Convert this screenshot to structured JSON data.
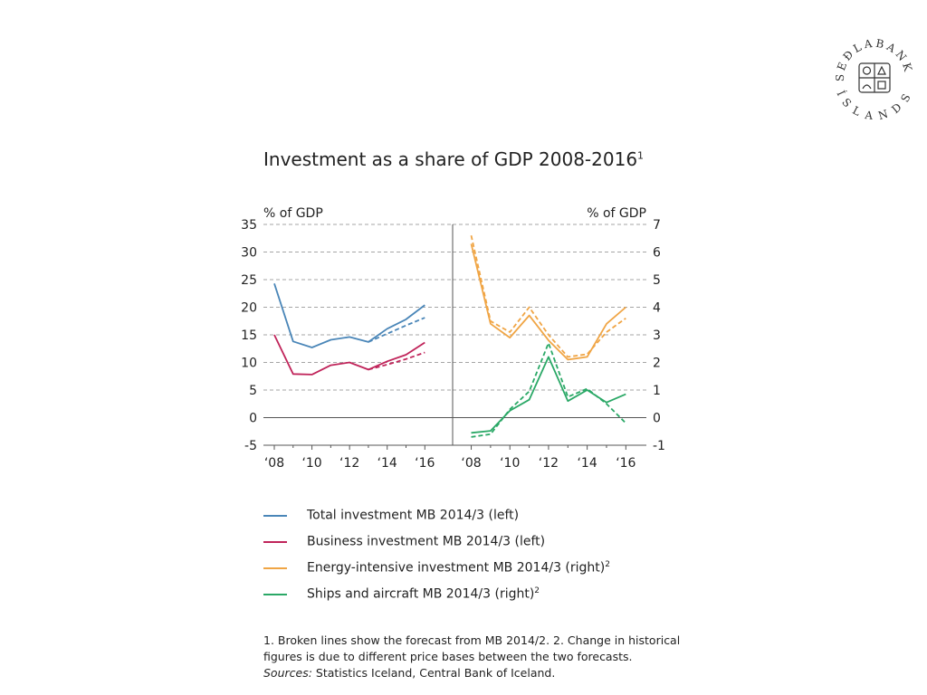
{
  "logo": {
    "text_top": "SEÐLABANKI",
    "text_bottom": "ÍSLANDS",
    "color": "#333333"
  },
  "chart_data": {
    "type": "line",
    "title": "Investment as a share of GDP 2008-2016",
    "title_sup": "1",
    "panels": [
      {
        "id": "left",
        "ylabel": "% of GDP",
        "ylim": [
          -5,
          35
        ],
        "yticks": [
          35,
          30,
          25,
          20,
          15,
          10,
          5,
          0,
          -5
        ],
        "xlim": [
          2008,
          2016.9
        ],
        "xticks": [
          {
            "label": "‘08",
            "x": 2008
          },
          {
            "label": "‘10",
            "x": 2010
          },
          {
            "label": "‘12",
            "x": 2012
          },
          {
            "label": "‘14",
            "x": 2014
          },
          {
            "label": "‘16",
            "x": 2016
          }
        ],
        "series": [
          {
            "name": "Total investment MB 2014/3 (left)",
            "color": "#4a86b8",
            "dashed": false,
            "x": [
              2008,
              2009,
              2010,
              2011,
              2012,
              2013,
              2014,
              2015,
              2016
            ],
            "y": [
              24.3,
              13.8,
              12.7,
              14.1,
              14.6,
              13.7,
              16.1,
              17.8,
              20.4
            ]
          },
          {
            "name": "Total investment MB 2014/2",
            "color": "#4a86b8",
            "dashed": true,
            "x": [
              2013,
              2014,
              2015,
              2016
            ],
            "y": [
              13.7,
              15.2,
              16.7,
              18.1
            ]
          },
          {
            "name": "Business investment MB 2014/3 (left)",
            "color": "#c0245a",
            "dashed": false,
            "x": [
              2008,
              2009,
              2010,
              2011,
              2012,
              2013,
              2014,
              2015,
              2016
            ],
            "y": [
              15.0,
              7.9,
              7.8,
              9.5,
              10.0,
              8.7,
              10.2,
              11.4,
              13.6
            ]
          },
          {
            "name": "Business investment MB 2014/2",
            "color": "#c0245a",
            "dashed": true,
            "x": [
              2013,
              2014,
              2015,
              2016
            ],
            "y": [
              8.7,
              9.6,
              10.6,
              11.8
            ]
          }
        ]
      },
      {
        "id": "right",
        "ylabel": "% of GDP",
        "ylim": [
          -1,
          7
        ],
        "yticks": [
          7,
          6,
          5,
          4,
          3,
          2,
          1,
          0,
          -1
        ],
        "xlim": [
          2007.6,
          2016.5
        ],
        "xticks": [
          {
            "label": "‘08",
            "x": 2008
          },
          {
            "label": "‘10",
            "x": 2010
          },
          {
            "label": "‘12",
            "x": 2012
          },
          {
            "label": "‘14",
            "x": 2014
          },
          {
            "label": "‘16",
            "x": 2016
          }
        ],
        "series": [
          {
            "name": "Energy-intensive investment MB 2014/3 (right)",
            "color": "#f0a545",
            "dashed": false,
            "x": [
              2008,
              2009,
              2010,
              2011,
              2012,
              2013,
              2014,
              2015,
              2016
            ],
            "y": [
              6.3,
              3.4,
              2.9,
              3.7,
              2.8,
              2.1,
              2.2,
              3.4,
              4.0
            ]
          },
          {
            "name": "Energy-intensive investment MB 2014/2",
            "color": "#f0a545",
            "dashed": true,
            "x": [
              2008,
              2009,
              2010,
              2011,
              2012,
              2013,
              2014,
              2015,
              2016
            ],
            "y": [
              6.6,
              3.5,
              3.1,
              4.0,
              3.0,
              2.2,
              2.3,
              3.1,
              3.6
            ]
          },
          {
            "name": "Ships and aircraft MB 2014/3 (right)",
            "color": "#2aa866",
            "dashed": false,
            "x": [
              2008,
              2009,
              2010,
              2011,
              2012,
              2013,
              2014,
              2015,
              2016
            ],
            "y": [
              -0.55,
              -0.48,
              0.25,
              0.65,
              2.2,
              0.6,
              1.0,
              0.55,
              0.85
            ]
          },
          {
            "name": "Ships and aircraft MB 2014/2",
            "color": "#2aa866",
            "dashed": true,
            "x": [
              2008,
              2009,
              2010,
              2011,
              2012,
              2013,
              2014,
              2015,
              2016
            ],
            "y": [
              -0.7,
              -0.6,
              0.3,
              0.95,
              2.7,
              0.75,
              1.05,
              0.5,
              -0.2
            ]
          }
        ]
      }
    ],
    "legend": [
      {
        "label": "Total investment MB 2014/3 (left)",
        "sup": "",
        "color": "#4a86b8"
      },
      {
        "label": "Business investment MB 2014/3 (left)",
        "sup": "",
        "color": "#c0245a"
      },
      {
        "label": "Energy-intensive investment MB 2014/3 (right)",
        "sup": "2",
        "color": "#f0a545"
      },
      {
        "label": "Ships and aircraft MB 2014/3 (right)",
        "sup": "2",
        "color": "#2aa866"
      }
    ],
    "grid": true
  },
  "footnote": {
    "notes": "1. Broken lines show the forecast from MB 2014/2. 2. Change in historical figures is due to different price bases between the two forecasts.",
    "sources_label": "Sources:",
    "sources_text": " Statistics Iceland, Central Bank of Iceland."
  }
}
